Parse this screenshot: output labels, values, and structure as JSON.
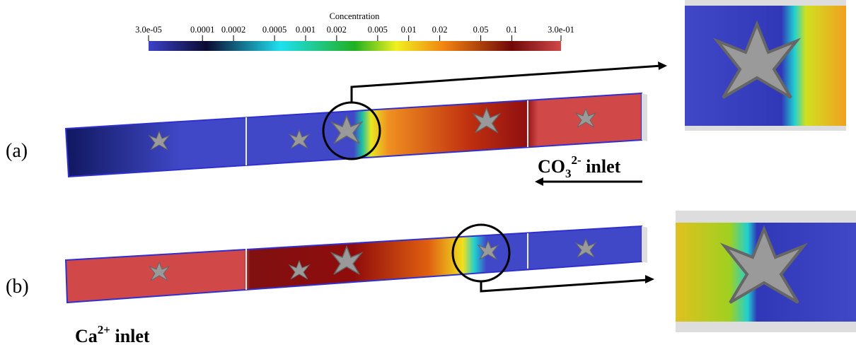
{
  "colorbar": {
    "title": "Concentration",
    "scale": "log",
    "lim": [
      3e-05,
      0.3
    ],
    "ticks": [
      {
        "value": 3e-05,
        "label": "3.0e-05"
      },
      0.0001,
      0.0002,
      0.0005,
      0.001,
      0.002,
      0.005,
      0.01,
      0.02,
      0.05,
      0.1,
      {
        "value": 0.3,
        "label": "3.0e-01"
      }
    ]
  },
  "panels": [
    {
      "label": "(a)",
      "inlet": {
        "base": "CO",
        "sub": "3",
        "sup": "2-",
        "rest": " inlet"
      }
    },
    {
      "label": "(b)",
      "inlet": {
        "base": "Ca",
        "sup": "2+",
        "rest": " inlet"
      }
    }
  ]
}
